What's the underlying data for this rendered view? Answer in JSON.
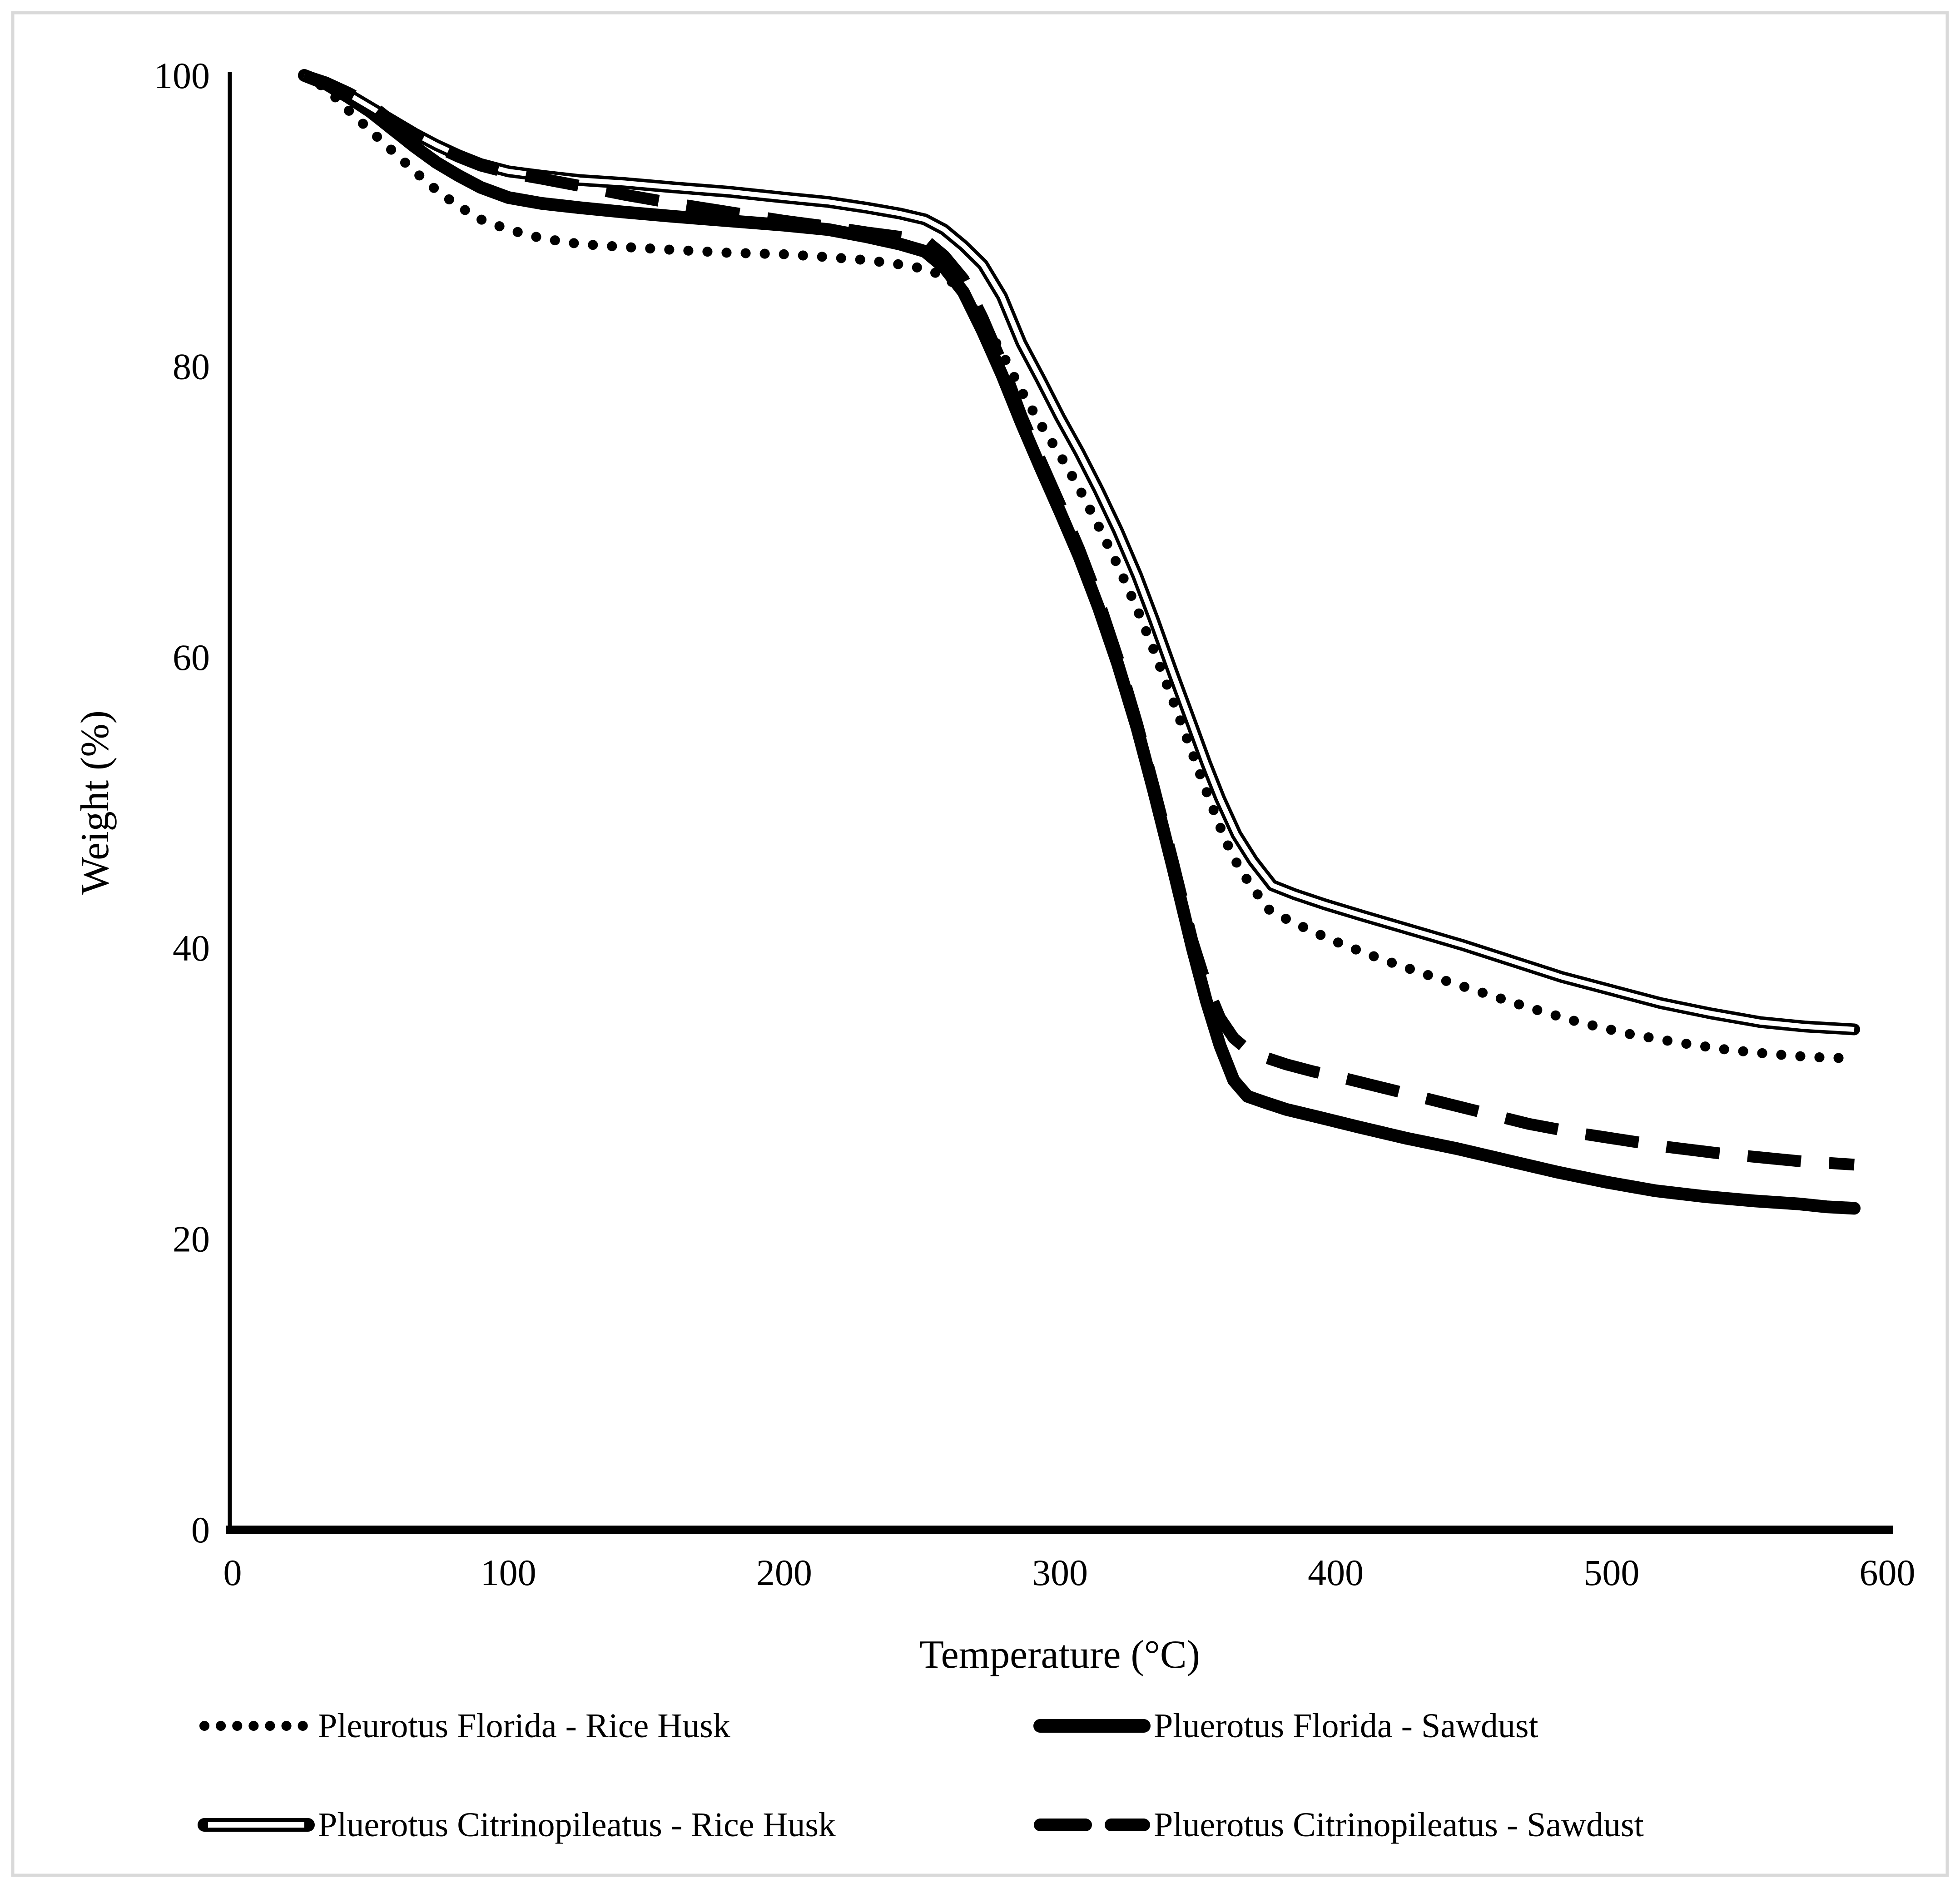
{
  "frame": {
    "background": "#ffffff",
    "border_color": "#d9d9d9"
  },
  "chart_data": {
    "type": "line",
    "title": "",
    "xlabel": "Temperature (°C)",
    "ylabel": "Weight (%)",
    "xlim": [
      0,
      600
    ],
    "ylim": [
      0,
      100
    ],
    "x_ticks": [
      0,
      100,
      200,
      300,
      400,
      500,
      600
    ],
    "y_ticks": [
      0,
      20,
      40,
      60,
      80,
      100
    ],
    "grid": false,
    "legend_position": "bottom",
    "line_color": "#000000",
    "series": [
      {
        "name": "Pleurotus Florida - Rice Husk",
        "line_style": "dotted",
        "color": "#000000",
        "points": [
          [
            26,
            100
          ],
          [
            34,
            99.1
          ],
          [
            42,
            97.6
          ],
          [
            50,
            96.2
          ],
          [
            58,
            94.8
          ],
          [
            66,
            93.4
          ],
          [
            74,
            92.1
          ],
          [
            82,
            91.0
          ],
          [
            90,
            90.1
          ],
          [
            100,
            89.4
          ],
          [
            112,
            88.8
          ],
          [
            126,
            88.4
          ],
          [
            142,
            88.2
          ],
          [
            160,
            88.0
          ],
          [
            180,
            87.8
          ],
          [
            200,
            87.7
          ],
          [
            216,
            87.5
          ],
          [
            230,
            87.3
          ],
          [
            242,
            87.0
          ],
          [
            251,
            86.7
          ],
          [
            258,
            86.2
          ],
          [
            265,
            85.2
          ],
          [
            272,
            83.2
          ],
          [
            279,
            80.9
          ],
          [
            286,
            78.3
          ],
          [
            293,
            76.0
          ],
          [
            300,
            73.9
          ],
          [
            307,
            71.6
          ],
          [
            314,
            69.0
          ],
          [
            321,
            66.3
          ],
          [
            328,
            63.3
          ],
          [
            334,
            60.5
          ],
          [
            341,
            57.0
          ],
          [
            348,
            53.4
          ],
          [
            354,
            50.3
          ],
          [
            360,
            47.4
          ],
          [
            365,
            45.5
          ],
          [
            370,
            44.1
          ],
          [
            376,
            42.6
          ],
          [
            383,
            41.9
          ],
          [
            392,
            41.1
          ],
          [
            403,
            40.2
          ],
          [
            417,
            39.2
          ],
          [
            434,
            38.1
          ],
          [
            452,
            37.0
          ],
          [
            470,
            35.9
          ],
          [
            488,
            34.9
          ],
          [
            506,
            34.1
          ],
          [
            524,
            33.5
          ],
          [
            542,
            33.0
          ],
          [
            558,
            32.7
          ],
          [
            572,
            32.5
          ],
          [
            588,
            32.4
          ]
        ]
      },
      {
        "name": "Pluerotus Florida - Sawdust",
        "line_style": "thick-solid",
        "color": "#000000",
        "points": [
          [
            26,
            100
          ],
          [
            34,
            99.4
          ],
          [
            42,
            98.5
          ],
          [
            50,
            97.5
          ],
          [
            58,
            96.3
          ],
          [
            66,
            95.1
          ],
          [
            74,
            94.0
          ],
          [
            82,
            93.1
          ],
          [
            90,
            92.3
          ],
          [
            100,
            91.6
          ],
          [
            112,
            91.2
          ],
          [
            126,
            90.9
          ],
          [
            142,
            90.6
          ],
          [
            160,
            90.3
          ],
          [
            180,
            90.0
          ],
          [
            200,
            89.7
          ],
          [
            216,
            89.4
          ],
          [
            230,
            88.9
          ],
          [
            242,
            88.4
          ],
          [
            251,
            87.9
          ],
          [
            258,
            86.8
          ],
          [
            265,
            85.1
          ],
          [
            272,
            82.4
          ],
          [
            279,
            79.4
          ],
          [
            286,
            76.1
          ],
          [
            293,
            73.0
          ],
          [
            300,
            70.0
          ],
          [
            307,
            66.9
          ],
          [
            314,
            63.4
          ],
          [
            321,
            59.5
          ],
          [
            328,
            55.1
          ],
          [
            334,
            50.8
          ],
          [
            341,
            45.5
          ],
          [
            348,
            40.0
          ],
          [
            353,
            36.4
          ],
          [
            358,
            33.3
          ],
          [
            363,
            30.9
          ],
          [
            368,
            29.8
          ],
          [
            374,
            29.4
          ],
          [
            382,
            28.9
          ],
          [
            393,
            28.4
          ],
          [
            408,
            27.7
          ],
          [
            426,
            26.9
          ],
          [
            444,
            26.2
          ],
          [
            462,
            25.4
          ],
          [
            480,
            24.6
          ],
          [
            498,
            23.9
          ],
          [
            516,
            23.3
          ],
          [
            534,
            22.9
          ],
          [
            552,
            22.6
          ],
          [
            568,
            22.4
          ],
          [
            578,
            22.2
          ],
          [
            588,
            22.1
          ]
        ]
      },
      {
        "name": "Pluerotus Citrinopileatus - Rice Husk",
        "line_style": "double-line",
        "color": "#000000",
        "points": [
          [
            26,
            100
          ],
          [
            34,
            99.5
          ],
          [
            42,
            98.7
          ],
          [
            50,
            97.8
          ],
          [
            58,
            96.9
          ],
          [
            66,
            96.0
          ],
          [
            74,
            95.2
          ],
          [
            82,
            94.5
          ],
          [
            90,
            93.9
          ],
          [
            100,
            93.4
          ],
          [
            112,
            93.1
          ],
          [
            126,
            92.8
          ],
          [
            142,
            92.6
          ],
          [
            160,
            92.3
          ],
          [
            180,
            92.0
          ],
          [
            200,
            91.6
          ],
          [
            216,
            91.3
          ],
          [
            230,
            90.9
          ],
          [
            242,
            90.5
          ],
          [
            251,
            90.1
          ],
          [
            258,
            89.4
          ],
          [
            265,
            88.3
          ],
          [
            272,
            87.0
          ],
          [
            279,
            84.8
          ],
          [
            286,
            81.6
          ],
          [
            293,
            79.1
          ],
          [
            300,
            76.5
          ],
          [
            307,
            74.1
          ],
          [
            314,
            71.5
          ],
          [
            321,
            68.7
          ],
          [
            328,
            65.6
          ],
          [
            334,
            62.6
          ],
          [
            341,
            58.9
          ],
          [
            348,
            55.3
          ],
          [
            353,
            52.7
          ],
          [
            358,
            50.3
          ],
          [
            364,
            47.8
          ],
          [
            370,
            46.0
          ],
          [
            377,
            44.3
          ],
          [
            385,
            43.7
          ],
          [
            396,
            43.0
          ],
          [
            410,
            42.2
          ],
          [
            428,
            41.2
          ],
          [
            446,
            40.2
          ],
          [
            464,
            39.1
          ],
          [
            482,
            38.0
          ],
          [
            500,
            37.1
          ],
          [
            518,
            36.2
          ],
          [
            536,
            35.5
          ],
          [
            554,
            34.9
          ],
          [
            570,
            34.6
          ],
          [
            588,
            34.4
          ]
        ]
      },
      {
        "name": "Pluerotus Citrinopileatus - Sawdust",
        "line_style": "dashed",
        "color": "#000000",
        "points": [
          [
            26,
            100
          ],
          [
            34,
            99.5
          ],
          [
            42,
            98.8
          ],
          [
            50,
            98.0
          ],
          [
            58,
            96.8
          ],
          [
            66,
            95.9
          ],
          [
            74,
            95.1
          ],
          [
            82,
            94.4
          ],
          [
            90,
            93.8
          ],
          [
            100,
            93.3
          ],
          [
            112,
            92.9
          ],
          [
            126,
            92.4
          ],
          [
            142,
            91.8
          ],
          [
            160,
            91.2
          ],
          [
            180,
            90.6
          ],
          [
            200,
            90.0
          ],
          [
            216,
            89.6
          ],
          [
            230,
            89.2
          ],
          [
            242,
            88.9
          ],
          [
            251,
            88.7
          ],
          [
            258,
            87.6
          ],
          [
            265,
            86.0
          ],
          [
            272,
            83.3
          ],
          [
            279,
            80.2
          ],
          [
            286,
            76.6
          ],
          [
            293,
            73.5
          ],
          [
            300,
            70.5
          ],
          [
            307,
            67.4
          ],
          [
            314,
            63.9
          ],
          [
            321,
            59.9
          ],
          [
            328,
            55.4
          ],
          [
            334,
            51.1
          ],
          [
            341,
            45.9
          ],
          [
            348,
            40.5
          ],
          [
            353,
            37.5
          ],
          [
            358,
            35.2
          ],
          [
            363,
            33.8
          ],
          [
            368,
            33.0
          ],
          [
            374,
            32.5
          ],
          [
            382,
            32.0
          ],
          [
            392,
            31.5
          ],
          [
            404,
            31.0
          ],
          [
            419,
            30.3
          ],
          [
            436,
            29.5
          ],
          [
            453,
            28.7
          ],
          [
            470,
            27.9
          ],
          [
            487,
            27.3
          ],
          [
            504,
            26.8
          ],
          [
            521,
            26.3
          ],
          [
            538,
            25.9
          ],
          [
            554,
            25.6
          ],
          [
            570,
            25.3
          ],
          [
            580,
            25.2
          ],
          [
            588,
            25.1
          ]
        ]
      }
    ]
  },
  "legend": {
    "items": [
      {
        "series": 0
      },
      {
        "series": 1
      },
      {
        "series": 2
      },
      {
        "series": 3
      }
    ]
  }
}
